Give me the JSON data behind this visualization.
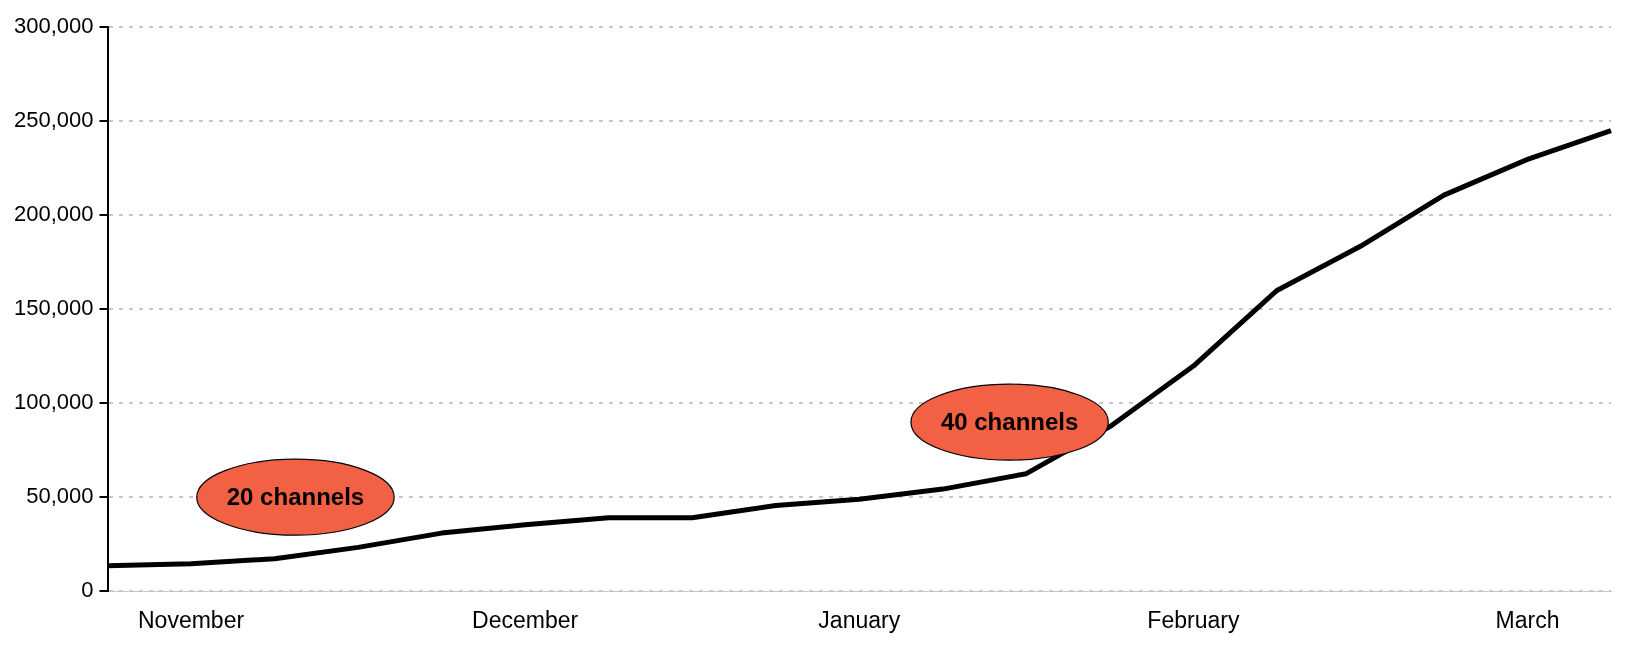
{
  "chart_data": {
    "type": "line",
    "categories": [
      null,
      "November",
      null,
      null,
      null,
      "December",
      null,
      null,
      null,
      "January",
      null,
      null,
      null,
      "February",
      null,
      null,
      null,
      "March",
      null
    ],
    "series": [
      {
        "color": "#000000",
        "values": [
          13600,
          14700,
          17400,
          23400,
          31000,
          35400,
          39200,
          39200,
          45700,
          49000,
          54400,
          62600,
          87600,
          119800,
          160000,
          183500,
          210700,
          229700,
          245000
        ]
      }
    ],
    "ylim": [
      0,
      300000
    ],
    "yticks": [
      0,
      {
        "value": 50000,
        "label": "50,000"
      },
      {
        "value": 100000,
        "label": "100,000"
      },
      {
        "value": 150000,
        "label": "150,000"
      },
      {
        "value": 200000,
        "label": "200,000"
      },
      {
        "value": 250000,
        "label": "250,000"
      },
      {
        "value": 300000,
        "label": "300,000"
      }
    ],
    "grid": "y",
    "legend": false,
    "marker": "none",
    "line_style": "solid",
    "annotations": [
      "20 channels",
      "40 channels"
    ]
  }
}
